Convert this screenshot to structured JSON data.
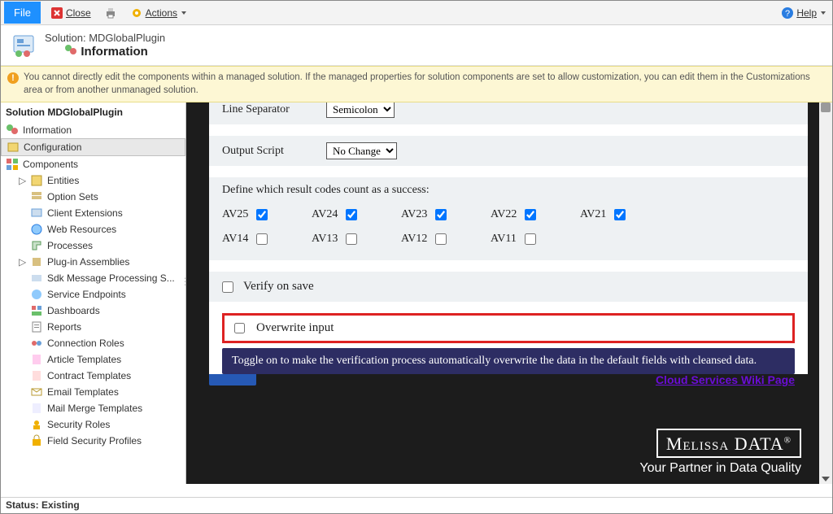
{
  "ribbon": {
    "file": "File",
    "close": "Close",
    "actions": "Actions",
    "help": "Help"
  },
  "header": {
    "line1": "Solution: MDGlobalPlugin",
    "line2": "Information"
  },
  "warning": {
    "text": "You cannot directly edit the components within a managed solution. If the managed properties for solution components are set to allow customization, you can edit them in the Customizations area or from another unmanaged solution."
  },
  "sidebar": {
    "title": "Solution MDGlobalPlugin",
    "items": [
      {
        "label": "Information"
      },
      {
        "label": "Configuration"
      },
      {
        "label": "Components"
      },
      {
        "label": "Entities"
      },
      {
        "label": "Option Sets"
      },
      {
        "label": "Client Extensions"
      },
      {
        "label": "Web Resources"
      },
      {
        "label": "Processes"
      },
      {
        "label": "Plug-in Assemblies"
      },
      {
        "label": "Sdk Message Processing S..."
      },
      {
        "label": "Service Endpoints"
      },
      {
        "label": "Dashboards"
      },
      {
        "label": "Reports"
      },
      {
        "label": "Connection Roles"
      },
      {
        "label": "Article Templates"
      },
      {
        "label": "Contract Templates"
      },
      {
        "label": "Email Templates"
      },
      {
        "label": "Mail Merge Templates"
      },
      {
        "label": "Security Roles"
      },
      {
        "label": "Field Security Profiles"
      }
    ]
  },
  "form": {
    "line_separator_label": "Line Separator",
    "line_separator_value": "Semicolon",
    "output_script_label": "Output Script",
    "output_script_value": "No Change",
    "codes_prompt": "Define which result codes count as a success:",
    "codes": [
      {
        "label": "AV25",
        "checked": true
      },
      {
        "label": "AV24",
        "checked": true
      },
      {
        "label": "AV23",
        "checked": true
      },
      {
        "label": "AV22",
        "checked": true
      },
      {
        "label": "AV21",
        "checked": true
      },
      {
        "label": "AV14",
        "checked": false
      },
      {
        "label": "AV13",
        "checked": false
      },
      {
        "label": "AV12",
        "checked": false
      },
      {
        "label": "AV11",
        "checked": false
      }
    ],
    "verify_label": "Verify on save",
    "verify_checked": false,
    "overwrite_label": "Overwrite input",
    "overwrite_checked": false,
    "tooltip": "Toggle on to make the verification process automatically overwrite the data in the default fields with cleansed data.",
    "wiki_link": "Cloud Services Wiki Page"
  },
  "brand": {
    "line1a": "Melissa",
    "line1b": "DATA",
    "reg": "®",
    "line2": "Your Partner in Data Quality"
  },
  "status": {
    "label": "Status:",
    "value": "Existing"
  },
  "colors": {
    "file_btn": "#1e90ff",
    "warn_bg": "#fdf7d4",
    "highlight_border": "#dd2222",
    "tooltip_bg": "#2d2d63",
    "link": "#6a0dd6",
    "dark_bg": "#1c1c1c",
    "block_bg": "#eef1f3"
  }
}
